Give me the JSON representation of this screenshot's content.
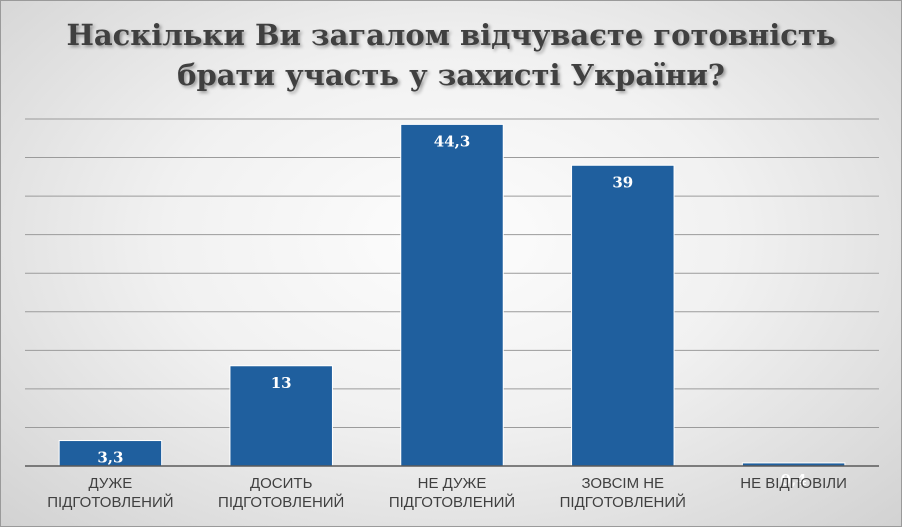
{
  "chart_data": {
    "type": "bar",
    "title_lines": [
      "Наскільки Ви загалом відчуваєте готовність",
      "брати участь у захисті України?"
    ],
    "categories": [
      [
        "ДУЖЕ",
        "ПІДГОТОВЛЕНИЙ"
      ],
      [
        "ДОСИТЬ",
        "ПІДГОТОВЛЕНИЙ"
      ],
      [
        "НЕ ДУЖЕ",
        "ПІДГОТОВЛЕНИЙ"
      ],
      [
        "ЗОВСІМ НЕ",
        "ПІДГОТОВЛЕНИЙ"
      ],
      [
        "НЕ ВІДПОВІЛИ"
      ]
    ],
    "values": [
      3.3,
      13,
      44.3,
      39,
      0.4
    ],
    "data_labels": [
      "3,3",
      "13",
      "44,3",
      "39",
      "0,4"
    ],
    "ylim": [
      0,
      45
    ],
    "grid": true,
    "bar_color": "#1f5f9e"
  }
}
